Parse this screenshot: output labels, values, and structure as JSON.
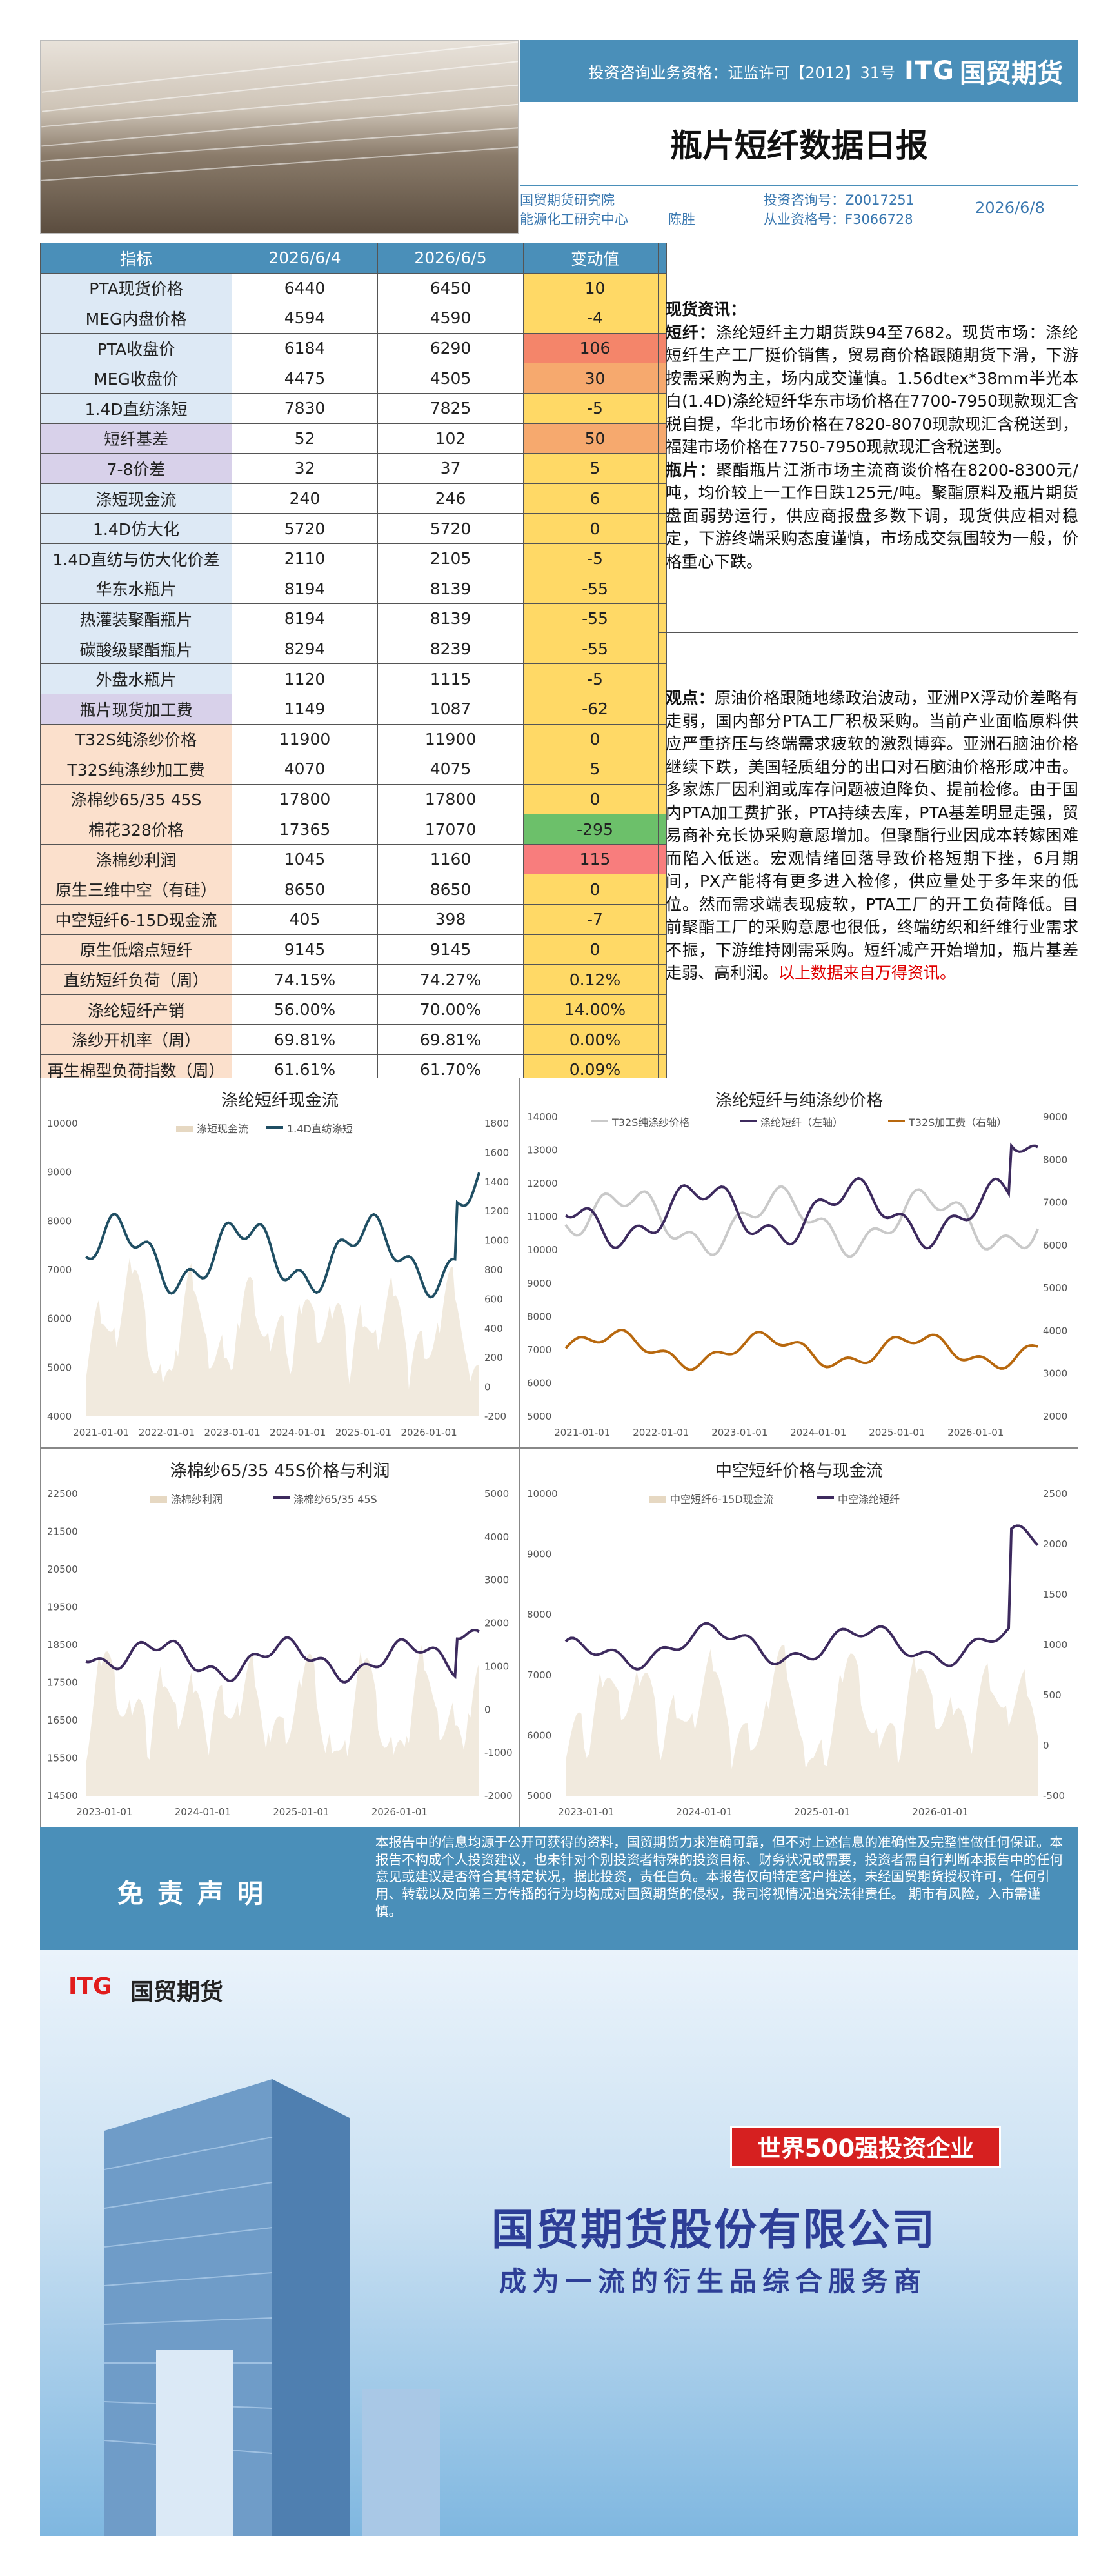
{
  "header": {
    "license": "投资咨询业务资格：证监许可【2012】31号",
    "itg": "ITG",
    "company_cn": "国贸期货",
    "title": "瓶片短纤数据日报",
    "institute": "国贸期货研究院",
    "department": "能源化工研究中心",
    "analyst": "陈胜",
    "consult_no": "投资咨询号：Z0017251",
    "practice_no": "从业资格号：F3066728",
    "date": "2026/6/8"
  },
  "table": {
    "headers": [
      "指标",
      "2026/6/4",
      "2026/6/5",
      "变动值"
    ],
    "rows": [
      {
        "label": "PTA现货价格",
        "v1": "6440",
        "v2": "6450",
        "chg": "10",
        "lc": "",
        "cc": "c-y"
      },
      {
        "label": "MEG内盘价格",
        "v1": "4594",
        "v2": "4590",
        "chg": "-4",
        "lc": "",
        "cc": "c-y"
      },
      {
        "label": "PTA收盘价",
        "v1": "6184",
        "v2": "6290",
        "chg": "106",
        "lc": "",
        "cc": "c-r"
      },
      {
        "label": "MEG收盘价",
        "v1": "4475",
        "v2": "4505",
        "chg": "30",
        "lc": "",
        "cc": "c-o"
      },
      {
        "label": "1.4D直纺涤短",
        "v1": "7830",
        "v2": "7825",
        "chg": "-5",
        "lc": "",
        "cc": "c-y"
      },
      {
        "label": "短纤基差",
        "v1": "52",
        "v2": "102",
        "chg": "50",
        "lc": "pur",
        "cc": "c-o"
      },
      {
        "label": "7-8价差",
        "v1": "32",
        "v2": "37",
        "chg": "5",
        "lc": "pur",
        "cc": "c-y"
      },
      {
        "label": "涤短现金流",
        "v1": "240",
        "v2": "246",
        "chg": "6",
        "lc": "",
        "cc": "c-y"
      },
      {
        "label": "1.4D仿大化",
        "v1": "5720",
        "v2": "5720",
        "chg": "0",
        "lc": "",
        "cc": "c-y"
      },
      {
        "label": "1.4D直纺与仿大化价差",
        "v1": "2110",
        "v2": "2105",
        "chg": "-5",
        "lc": "",
        "cc": "c-y"
      },
      {
        "label": "华东水瓶片",
        "v1": "8194",
        "v2": "8139",
        "chg": "-55",
        "lc": "",
        "cc": "c-y"
      },
      {
        "label": "热灌装聚酯瓶片",
        "v1": "8194",
        "v2": "8139",
        "chg": "-55",
        "lc": "",
        "cc": "c-y"
      },
      {
        "label": "碳酸级聚酯瓶片",
        "v1": "8294",
        "v2": "8239",
        "chg": "-55",
        "lc": "",
        "cc": "c-y"
      },
      {
        "label": "外盘水瓶片",
        "v1": "1120",
        "v2": "1115",
        "chg": "-5",
        "lc": "",
        "cc": "c-y"
      },
      {
        "label": "瓶片现货加工费",
        "v1": "1149",
        "v2": "1087",
        "chg": "-62",
        "lc": "pur",
        "cc": "c-y"
      },
      {
        "label": "T32S纯涤纱价格",
        "v1": "11900",
        "v2": "11900",
        "chg": "0",
        "lc": "pch",
        "cc": "c-y"
      },
      {
        "label": "T32S纯涤纱加工费",
        "v1": "4070",
        "v2": "4075",
        "chg": "5",
        "lc": "pch",
        "cc": "c-y"
      },
      {
        "label": "涤棉纱65/35 45S",
        "v1": "17800",
        "v2": "17800",
        "chg": "0",
        "lc": "pch",
        "cc": "c-y"
      },
      {
        "label": "棉花328价格",
        "v1": "17365",
        "v2": "17070",
        "chg": "-295",
        "lc": "pch",
        "cc": "c-g"
      },
      {
        "label": "涤棉纱利润",
        "v1": "1045",
        "v2": "1160",
        "chg": "115",
        "lc": "pch",
        "cc": "c-lr"
      },
      {
        "label": "原生三维中空（有硅）",
        "v1": "8650",
        "v2": "8650",
        "chg": "0",
        "lc": "pch",
        "cc": "c-y"
      },
      {
        "label": "中空短纤6-15D现金流",
        "v1": "405",
        "v2": "398",
        "chg": "-7",
        "lc": "pch",
        "cc": "c-y"
      },
      {
        "label": "原生低熔点短纤",
        "v1": "9145",
        "v2": "9145",
        "chg": "0",
        "lc": "pch",
        "cc": "c-y"
      },
      {
        "label": "直纺短纤负荷（周）",
        "v1": "74.15%",
        "v2": "74.27%",
        "chg": "0.12%",
        "lc": "pch",
        "cc": "c-y"
      },
      {
        "label": "涤纶短纤产销",
        "v1": "56.00%",
        "v2": "70.00%",
        "chg": "14.00%",
        "lc": "pch",
        "cc": "c-y"
      },
      {
        "label": "涤纱开机率（周）",
        "v1": "69.81%",
        "v2": "69.81%",
        "chg": "0.00%",
        "lc": "pch",
        "cc": "c-y"
      },
      {
        "label": "再生棉型负荷指数（周）",
        "v1": "61.61%",
        "v2": "61.70%",
        "chg": "0.09%",
        "lc": "pch",
        "cc": "c-y"
      }
    ]
  },
  "spot": {
    "heading": "现货资讯：",
    "p1_lead": "短纤：",
    "p1": "涤纶短纤主力期货跌94至7682。现货市场：涤纶短纤生产工厂挺价销售，贸易商价格跟随期货下滑，下游按需采购为主，场内成交谨慎。1.56dtex*38mm半光本白(1.4D)涤纶短纤华东市场价格在7700-7950现款现汇含税自提，华北市场价格在7820-8070现款现汇含税送到，福建市场价格在7750-7950现款现汇含税送到。",
    "p2_lead": "瓶片：",
    "p2": "聚酯瓶片江浙市场主流商谈价格在8200-8300元/吨，均价较上一工作日跌125元/吨。聚酯原料及瓶片期货盘面弱势运行，供应商报盘多数下调，现货供应相对稳定，下游终端采购态度谨慎，市场成交氛围较为一般，价格重心下跌。"
  },
  "view": {
    "lead": "观点：",
    "text": "原油价格跟随地缘政治波动，亚洲PX浮动价差略有走弱，国内部分PTA工厂积极采购。当前产业面临原料供应严重挤压与终端需求疲软的激烈博弈。亚洲石脑油价格继续下跌，美国轻质组分的出口对石脑油价格形成冲击。多家炼厂因利润或库存问题被迫降负、提前检修。由于国内PTA加工费扩张，PTA持续去库，PTA基差明显走强，贸易商补充长协采购意愿增加。但聚酯行业因成本转嫁困难而陷入低迷。宏观情绪回落导致价格短期下挫，6月期间，PX产能将有更多进入检修，供应量处于多年来的低位。然而需求端表现疲软，PTA工厂的开工负荷降低。目前聚酯工厂的采购意愿也很低，终端纺织和纤维行业需求不振，下游维持刚需采购。短纤减产开始增加，瓶片基差走弱、高利润。",
    "red": "以上数据来自万得资讯。"
  },
  "charts": {
    "c1": {
      "title": "涤纶短纤现金流",
      "legend": [
        "涤短现金流",
        "1.4D直纺涤短"
      ],
      "yl": [
        "10000",
        "9000",
        "8000",
        "7000",
        "6000",
        "5000",
        "4000"
      ],
      "yr": [
        "1800",
        "1600",
        "1400",
        "1200",
        "1000",
        "800",
        "600",
        "400",
        "200",
        "0",
        "-200"
      ],
      "x": [
        "2021-01-01",
        "2022-01-01",
        "2023-01-01",
        "2024-01-01",
        "2025-01-01",
        "2026-01-01"
      ]
    },
    "c2": {
      "title": "涤纶短纤与纯涤纱价格",
      "legend": [
        "T32S纯涤纱价格",
        "涤纶短纤（左轴）",
        "T32S加工费（右轴）"
      ],
      "yl": [
        "14000",
        "13000",
        "12000",
        "11000",
        "10000",
        "9000",
        "8000",
        "7000",
        "6000",
        "5000"
      ],
      "yr": [
        "9000",
        "8000",
        "7000",
        "6000",
        "5000",
        "4000",
        "3000",
        "2000"
      ],
      "x": [
        "2021-01-01",
        "2022-01-01",
        "2023-01-01",
        "2024-01-01",
        "2025-01-01",
        "2026-01-01"
      ]
    },
    "c3": {
      "title": "涤棉纱65/35 45S价格与利润",
      "legend": [
        "涤棉纱利润",
        "涤棉纱65/35 45S"
      ],
      "yl": [
        "22500",
        "21500",
        "20500",
        "19500",
        "18500",
        "17500",
        "16500",
        "15500",
        "14500"
      ],
      "yr": [
        "5000",
        "4000",
        "3000",
        "2000",
        "1000",
        "0",
        "-1000",
        "-2000"
      ],
      "x": [
        "2023-01-01",
        "2024-01-01",
        "2025-01-01",
        "2026-01-01"
      ]
    },
    "c4": {
      "title": "中空短纤价格与现金流",
      "legend": [
        "中空短纤6-15D现金流",
        "中空涤纶短纤"
      ],
      "yl": [
        "10000",
        "9000",
        "8000",
        "7000",
        "6000",
        "5000"
      ],
      "yr": [
        "2500",
        "2000",
        "1500",
        "1000",
        "500",
        "0",
        "-500"
      ],
      "x": [
        "2023-01-01",
        "2024-01-01",
        "2025-01-01",
        "2026-01-01"
      ]
    }
  },
  "disclaimer": {
    "title": "免责声明",
    "text": "本报告中的信息均源于公开可获得的资料，国贸期货力求准确可靠，但不对上述信息的准确性及完整性做任何保证。本报告不构成个人投资建议，也未针对个别投资者特殊的投资目标、财务状况或需要，投资者需自行判断本报告中的任何意见或建议是否符合其特定状况，据此投资，责任自负。本报告仅向特定客户推送，未经国贸期货授权许可，任何引用、转载以及向第三方传播的行为均构成对国贸期货的侵权，我司将视情况追究法律责任。  期市有风险，入市需谨慎。"
  },
  "banner": {
    "itg": "ITG",
    "company_cn": "国贸期货",
    "badge": "世界500强投资企业",
    "name": "国贸期货股份有限公司",
    "slogan": "成为一流的衍生品综合服务商"
  }
}
